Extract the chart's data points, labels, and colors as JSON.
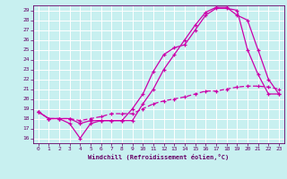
{
  "background_color": "#c8f0f0",
  "grid_color": "#ffffff",
  "line_color": "#cc00aa",
  "xlabel": "Windchill (Refroidissement éolien,°C)",
  "xlim": [
    -0.5,
    23.5
  ],
  "ylim": [
    15.5,
    29.5
  ],
  "xticks": [
    0,
    1,
    2,
    3,
    4,
    5,
    6,
    7,
    8,
    9,
    10,
    11,
    12,
    13,
    14,
    15,
    16,
    17,
    18,
    19,
    20,
    21,
    22,
    23
  ],
  "yticks": [
    16,
    17,
    18,
    19,
    20,
    21,
    22,
    23,
    24,
    25,
    26,
    27,
    28,
    29
  ],
  "line1_x": [
    0,
    1,
    2,
    3,
    4,
    5,
    6,
    7,
    8,
    9,
    10,
    11,
    12,
    13,
    14,
    15,
    16,
    17,
    18,
    19,
    20,
    21,
    22,
    23
  ],
  "line1_y": [
    18.7,
    18.0,
    18.0,
    17.5,
    16.0,
    17.5,
    17.8,
    17.8,
    17.8,
    19.0,
    20.5,
    22.8,
    24.5,
    25.2,
    25.5,
    27.0,
    28.5,
    29.2,
    29.2,
    29.0,
    25.0,
    22.5,
    20.5,
    20.5
  ],
  "line2_x": [
    0,
    1,
    2,
    3,
    4,
    5,
    6,
    7,
    8,
    9,
    10,
    11,
    12,
    13,
    14,
    15,
    16,
    17,
    18,
    19,
    20,
    21,
    22,
    23
  ],
  "line2_y": [
    18.7,
    18.0,
    18.0,
    18.0,
    17.5,
    17.8,
    17.8,
    17.8,
    17.8,
    17.8,
    19.5,
    21.0,
    23.0,
    24.5,
    26.0,
    27.5,
    28.8,
    29.3,
    29.3,
    28.5,
    28.0,
    25.0,
    22.0,
    20.5
  ],
  "line3_x": [
    0,
    1,
    2,
    3,
    4,
    5,
    6,
    7,
    8,
    9,
    10,
    11,
    12,
    13,
    14,
    15,
    16,
    17,
    18,
    19,
    20,
    21,
    22,
    23
  ],
  "line3_y": [
    18.7,
    18.0,
    18.0,
    18.0,
    17.8,
    18.0,
    18.2,
    18.5,
    18.5,
    18.5,
    19.0,
    19.5,
    19.8,
    20.0,
    20.2,
    20.5,
    20.8,
    20.8,
    21.0,
    21.2,
    21.3,
    21.3,
    21.2,
    21.0
  ],
  "spine_color": "#660066",
  "tick_color": "#660066",
  "xlabel_color": "#660066"
}
